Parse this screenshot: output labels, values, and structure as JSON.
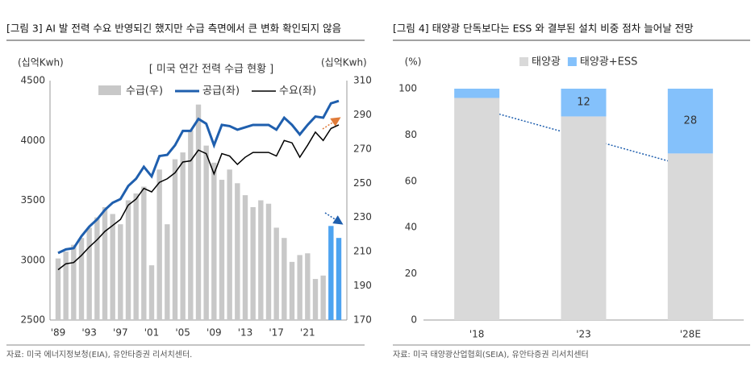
{
  "chart_data": [
    {
      "type": "combo",
      "title": "[그림 3] AI 발 전력 수요 반영되긴 했지만 수급 측면에서 큰 변화 확인되지 않음",
      "subtitle": "[ 미국 연간 전력 수급 현황 ]",
      "y_label": "(십억Kwh)",
      "y2_label": "(십억Kwh)",
      "source": "자료: 미국 에너지정보청(EIA), 유안타증권 리서치센터.",
      "categories": [
        "'89",
        null,
        null,
        null,
        "'93",
        null,
        null,
        null,
        "'97",
        null,
        null,
        null,
        "'01",
        null,
        null,
        null,
        "'05",
        null,
        null,
        null,
        "'09",
        null,
        null,
        null,
        "'13",
        null,
        null,
        null,
        "'17",
        null,
        null,
        null,
        "'21",
        null,
        null,
        null,
        null
      ],
      "ylim": [
        2500,
        4500
      ],
      "yticks": [
        2500,
        3000,
        3500,
        4000,
        4500
      ],
      "y2lim": [
        170,
        310
      ],
      "y2ticks": [
        170,
        190,
        210,
        230,
        250,
        270,
        290,
        310
      ],
      "series": [
        {
          "name": "수급(우)",
          "type": "bar",
          "axis": "y2",
          "color": "#c8c8c8",
          "colors": [
            "#c8c8c8",
            "#c8c8c8",
            "#c8c8c8",
            "#c8c8c8",
            "#c8c8c8",
            "#c8c8c8",
            "#c8c8c8",
            "#c8c8c8",
            "#c8c8c8",
            "#c8c8c8",
            "#c8c8c8",
            "#c8c8c8",
            "#c8c8c8",
            "#c8c8c8",
            "#c8c8c8",
            "#c8c8c8",
            "#c8c8c8",
            "#c8c8c8",
            "#c8c8c8",
            "#c8c8c8",
            "#c8c8c8",
            "#c8c8c8",
            "#c8c8c8",
            "#c8c8c8",
            "#c8c8c8",
            "#c8c8c8",
            "#c8c8c8",
            "#c8c8c8",
            "#c8c8c8",
            "#c8c8c8",
            "#c8c8c8",
            "#c8c8c8",
            "#c8c8c8",
            "#c8c8c8",
            "#c8c8c8",
            "#4da3f0",
            "#4da3f0"
          ],
          "values": [
            206,
            210,
            214,
            218,
            224,
            230,
            236,
            232,
            226,
            240,
            244,
            248,
            202,
            258,
            226,
            264,
            268,
            281,
            296,
            272,
            262,
            252,
            258,
            250,
            243,
            236,
            240,
            238,
            224,
            218,
            204,
            208,
            209,
            194,
            196,
            225,
            218
          ]
        },
        {
          "name": "공급(좌)",
          "type": "line",
          "color": "#1f5fae",
          "values": [
            3060,
            3090,
            3100,
            3200,
            3280,
            3340,
            3420,
            3480,
            3510,
            3620,
            3680,
            3780,
            3700,
            3870,
            3880,
            3960,
            4080,
            4080,
            4180,
            4140,
            3960,
            4130,
            4120,
            4090,
            4110,
            4130,
            4130,
            4130,
            4090,
            4190,
            4130,
            4050,
            4130,
            4200,
            4190,
            4310,
            4330
          ]
        },
        {
          "name": "수요(좌)",
          "type": "line",
          "color": "#000000",
          "values": [
            2920,
            2970,
            2980,
            3040,
            3110,
            3170,
            3240,
            3290,
            3340,
            3460,
            3510,
            3600,
            3570,
            3650,
            3680,
            3730,
            3820,
            3830,
            3920,
            3890,
            3720,
            3890,
            3870,
            3800,
            3860,
            3900,
            3900,
            3900,
            3870,
            4000,
            3980,
            3860,
            3960,
            4070,
            4000,
            4100,
            4130
          ]
        }
      ]
    },
    {
      "type": "stacked_bar",
      "title": "[그림 4] 태양광 단독보다는 ESS 와 결부된 설치 비중 점차 늘어날 전망",
      "y_label": "(%)",
      "source": "자료: 미국 태양광산업협회(SEIA), 유안타증권 리서치센터",
      "categories": [
        "'18",
        "'23",
        "'28E"
      ],
      "ylim": [
        0,
        100
      ],
      "yticks": [
        0,
        20,
        40,
        60,
        80,
        100
      ],
      "series": [
        {
          "name": "태양광",
          "color": "#d9d9d9",
          "values": [
            96,
            88,
            72
          ],
          "show_labels": [
            false,
            false,
            false
          ]
        },
        {
          "name": "태양광+ESS",
          "color": "#84c1fb",
          "values": [
            4,
            12,
            28
          ],
          "show_labels": [
            false,
            true,
            true
          ]
        }
      ]
    }
  ]
}
